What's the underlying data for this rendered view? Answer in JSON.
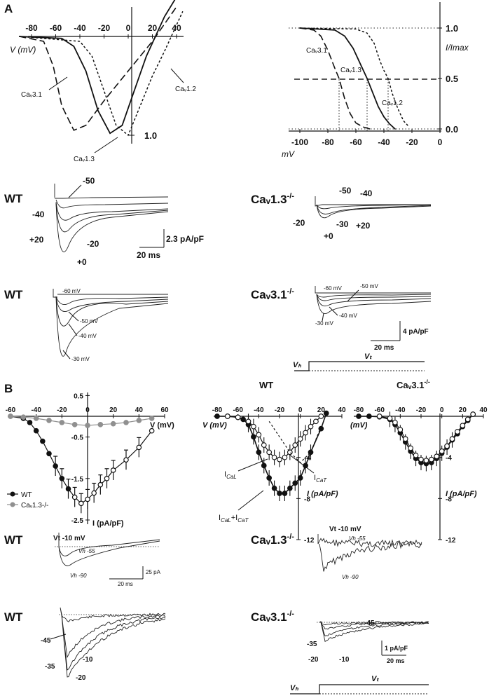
{
  "panels": {
    "A": {
      "label": "A",
      "iv_plot": {
        "xlabel": "V (mV)",
        "x_ticks": [
          "-80",
          "-60",
          "-40",
          "-20",
          "0",
          "20",
          "40"
        ],
        "y_tick": "1.0",
        "curve_labels": {
          "cav31": "Caᵥ3.1",
          "cav13": "Caᵥ1.3",
          "cav12": "Caᵥ1.2"
        }
      },
      "inact_plot": {
        "xlabel": "mV",
        "ylabel": "I/Imax",
        "x_ticks": [
          "-100",
          "-80",
          "-60",
          "-40",
          "-20",
          "0"
        ],
        "y_ticks": [
          "1.0",
          "0.5",
          "0.0"
        ],
        "curve_labels": {
          "cav31": "Caᵥ3.1",
          "cav13": "Caᵥ1.3",
          "cav12": "Caᵥ1.2"
        }
      },
      "traces_row1": {
        "left_title": "WT",
        "right_title": "Caᵥ1.3",
        "right_sup": "-/-",
        "left_labels": [
          "-50",
          "-40",
          "+20",
          "-20",
          "+0"
        ],
        "right_labels": [
          "-50",
          "-40",
          "-20",
          "-30",
          "+20",
          "+0"
        ],
        "scale_y": "2.3 pA/pF",
        "scale_x": "20 ms"
      },
      "traces_row2": {
        "left_title": "WT",
        "right_title": "Caᵥ3.1",
        "right_sup": "-/-",
        "left_labels": [
          "-60 mV",
          "-50 mV",
          "-40 mV",
          "-30 mV"
        ],
        "right_labels": [
          "-60 mV",
          "-50 mV",
          "-40 mV",
          "-30 mV"
        ],
        "scale_y": "4 pA/pF",
        "scale_x": "20 ms",
        "protocol_vh": "Vₕ",
        "protocol_vt": "Vₜ"
      }
    },
    "B": {
      "label": "B",
      "iv_ko13": {
        "xlabel": "V (mV)",
        "ylabel": "I (pA/pF)",
        "x_ticks": [
          "-60",
          "-40",
          "-20",
          "0",
          "20",
          "40",
          "60"
        ],
        "y_ticks": [
          "0.5",
          "-0.5",
          "-1.5",
          "-2.5"
        ],
        "legend": [
          {
            "name": "WT",
            "color": "#111111"
          },
          {
            "name": "Caᵥ1.3-/-",
            "color": "#909090"
          }
        ]
      },
      "iv_wt": {
        "title": "WT",
        "xlabel": "V (mV)",
        "ylabel": "I (pA/pF)",
        "x_ticks": [
          "-80",
          "-60",
          "-40",
          "-20",
          "0",
          "20",
          "40"
        ],
        "y_ticks": [
          "-4",
          "-8",
          "-12"
        ],
        "annotations": [
          "I",
          "CaL",
          "I",
          "CaT",
          "I",
          "CaL",
          "+I",
          "CaT"
        ]
      },
      "iv_ko31": {
        "title": "Caᵥ3.1",
        "title_sup": "-/-",
        "xlabel": "(mV)",
        "ylabel": "I (pA/pF)",
        "x_ticks": [
          "-80",
          "-60",
          "-40",
          "-20",
          "0",
          "20",
          "40"
        ],
        "y_ticks": [
          "-4",
          "-8",
          "-12"
        ]
      },
      "traces_row1": {
        "left_title": "WT",
        "right_title": "Caᵥ1.3",
        "right_sup": "-/-",
        "vt_label": "Vt -10 mV",
        "vh55": "Vh -55",
        "vh90": "Vh -90",
        "scale_y": "25 pA",
        "scale_x": "20 ms"
      },
      "traces_row2": {
        "left_title": "WT",
        "right_title": "Caᵥ3.1",
        "right_sup": "-/-",
        "left_labels": [
          "-45",
          "-10",
          "-35",
          "-20"
        ],
        "right_labels": [
          "-45",
          "-35",
          "-20",
          "-10"
        ],
        "scale_y": "1 pA/pF",
        "scale_x": "20 ms",
        "protocol_vh": "Vₕ",
        "protocol_vt": "Vₜ"
      }
    }
  },
  "chart_data": [
    {
      "type": "line",
      "xlabel": "V (mV)",
      "xlim": [
        -90,
        45
      ],
      "series": [
        {
          "name": "Cav3.1",
          "x": [
            -90,
            -70,
            -62,
            -55,
            -45,
            -35,
            -20,
            0,
            20,
            40
          ],
          "y": [
            0,
            -0.05,
            -0.3,
            -0.7,
            -0.95,
            -0.9,
            -0.65,
            -0.35,
            -0.05,
            0.3
          ]
        },
        {
          "name": "Cav1.3",
          "x": [
            -90,
            -55,
            -45,
            -35,
            -25,
            -15,
            -5,
            5,
            15,
            30,
            40
          ],
          "y": [
            0,
            -0.02,
            -0.1,
            -0.35,
            -0.75,
            -0.98,
            -0.9,
            -0.55,
            -0.2,
            0.2,
            0.4
          ]
        },
        {
          "name": "Cav1.2",
          "x": [
            -90,
            -40,
            -30,
            -20,
            -10,
            0,
            10,
            20,
            30,
            45
          ],
          "y": [
            0,
            -0.05,
            -0.2,
            -0.55,
            -0.9,
            -1.0,
            -0.7,
            -0.4,
            -0.15,
            0.25
          ]
        }
      ]
    },
    {
      "type": "line",
      "xlabel": "mV",
      "ylabel": "I/Imax",
      "xlim": [
        -105,
        0
      ],
      "ylim": [
        0,
        1.1
      ],
      "series": [
        {
          "name": "Cav3.1",
          "x": [
            -100,
            -90,
            -85,
            -80,
            -75,
            -72,
            -68,
            -64,
            -60,
            -55,
            -50
          ],
          "y": [
            1.0,
            0.98,
            0.92,
            0.78,
            0.6,
            0.5,
            0.3,
            0.15,
            0.06,
            0.02,
            0.0
          ]
        },
        {
          "name": "Cav1.3",
          "x": [
            -100,
            -75,
            -68,
            -62,
            -56,
            -52,
            -48,
            -44,
            -40,
            -36,
            -32
          ],
          "y": [
            1.0,
            0.98,
            0.92,
            0.8,
            0.62,
            0.5,
            0.36,
            0.22,
            0.12,
            0.05,
            0.0
          ]
        },
        {
          "name": "Cav1.2",
          "x": [
            -100,
            -60,
            -52,
            -47,
            -43,
            -40,
            -37,
            -34,
            -30,
            -26,
            -22
          ],
          "y": [
            1.0,
            0.99,
            0.95,
            0.85,
            0.68,
            0.58,
            0.5,
            0.35,
            0.2,
            0.08,
            0.02
          ]
        }
      ]
    },
    {
      "type": "line",
      "xlabel": "V (mV)",
      "ylabel": "I (pA/pF)",
      "xlim": [
        -60,
        60
      ],
      "ylim": [
        -2.5,
        0.5
      ],
      "series": [
        {
          "name": "WT",
          "x": [
            -60,
            -50,
            -45,
            -40,
            -35,
            -30,
            -25,
            -20,
            -15,
            -10,
            -5,
            0,
            5,
            10,
            15,
            20,
            30,
            40,
            50
          ],
          "y": [
            0,
            -0.05,
            -0.15,
            -0.35,
            -0.6,
            -0.9,
            -1.2,
            -1.5,
            -1.75,
            -1.95,
            -2.1,
            -2.0,
            -1.85,
            -1.65,
            -1.5,
            -1.3,
            -1.05,
            -0.75,
            -0.35
          ]
        },
        {
          "name": "Cav1.3-/-",
          "x": [
            -60,
            -50,
            -40,
            -30,
            -20,
            -10,
            0,
            10,
            20,
            30,
            40,
            50
          ],
          "y": [
            0,
            -0.02,
            -0.05,
            -0.1,
            -0.15,
            -0.2,
            -0.22,
            -0.2,
            -0.18,
            -0.15,
            -0.1,
            -0.05
          ]
        }
      ]
    },
    {
      "type": "line",
      "xlabel": "V (mV)",
      "ylabel": "I (pA/pF)",
      "xlim": [
        -80,
        40
      ],
      "ylim": [
        -12,
        0
      ],
      "series": [
        {
          "name": "ICaL+ICaT",
          "x": [
            -80,
            -70,
            -60,
            -55,
            -50,
            -45,
            -40,
            -35,
            -30,
            -25,
            -20,
            -15,
            -10,
            -5,
            0,
            5,
            10,
            20,
            25
          ],
          "y": [
            0,
            0,
            -0.1,
            -0.3,
            -0.8,
            -2.0,
            -3.5,
            -4.8,
            -6.0,
            -7.0,
            -7.5,
            -7.5,
            -7.0,
            -6.5,
            -6.0,
            -4.8,
            -3.5,
            -1.2,
            0.3
          ]
        },
        {
          "name": "ICaT",
          "x": [
            -70,
            -60,
            -50,
            -45,
            -40,
            -35,
            -30,
            -25,
            -20,
            -15,
            -10,
            -5,
            0,
            5,
            10,
            15,
            20
          ],
          "y": [
            0,
            -0.1,
            -0.5,
            -1.0,
            -1.8,
            -2.8,
            -3.5,
            -4.0,
            -4.2,
            -4.0,
            -3.5,
            -2.8,
            -2.2,
            -1.6,
            -1.0,
            -0.5,
            0
          ]
        },
        {
          "name": "ICaL",
          "x": [
            -30,
            -20,
            -10,
            0,
            10,
            20
          ],
          "y": [
            -0.5,
            -2.0,
            -3.5,
            -4.5,
            -3.5,
            -1.0
          ]
        }
      ]
    },
    {
      "type": "line",
      "xlabel": "(mV)",
      "ylabel": "I (pA/pF)",
      "xlim": [
        -80,
        40
      ],
      "ylim": [
        -12,
        0
      ],
      "series": [
        {
          "name": "Cav3.1-/- filled",
          "x": [
            -80,
            -70,
            -60,
            -50,
            -45,
            -40,
            -35,
            -30,
            -25,
            -20,
            -15,
            -10,
            -5,
            0,
            5,
            10,
            15,
            20,
            25,
            30
          ],
          "y": [
            0,
            0,
            -0.05,
            -0.3,
            -0.8,
            -1.6,
            -2.5,
            -3.4,
            -4.1,
            -4.5,
            -4.6,
            -4.5,
            -4.1,
            -3.6,
            -3.0,
            -2.3,
            -1.7,
            -1.0,
            -0.4,
            0.2
          ]
        },
        {
          "name": "Cav3.1-/- open",
          "x": [
            -60,
            -50,
            -45,
            -40,
            -35,
            -30,
            -25,
            -20,
            -15,
            -10,
            -5,
            0,
            5,
            10,
            15,
            20,
            25,
            30
          ],
          "y": [
            0,
            -0.2,
            -0.6,
            -1.3,
            -2.2,
            -3.1,
            -3.8,
            -4.2,
            -4.3,
            -4.2,
            -3.9,
            -3.4,
            -2.9,
            -2.2,
            -1.5,
            -0.9,
            -0.3,
            0.2
          ]
        }
      ]
    }
  ]
}
